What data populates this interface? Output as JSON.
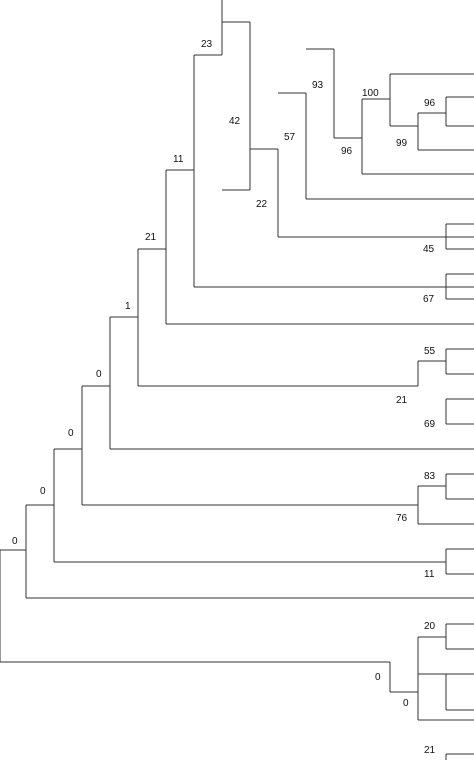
{
  "diagram": {
    "type": "phylogenetic-tree",
    "line_color": "#333333",
    "text_color": "#111111",
    "bootstrap_labels": [
      {
        "node": "n23",
        "value": "23"
      },
      {
        "node": "n42",
        "value": "42"
      },
      {
        "node": "n93",
        "value": "93"
      },
      {
        "node": "n100",
        "value": "100"
      },
      {
        "node": "n96a",
        "value": "96"
      },
      {
        "node": "n96b",
        "value": "96"
      },
      {
        "node": "n99",
        "value": "99"
      },
      {
        "node": "n57",
        "value": "57"
      },
      {
        "node": "n11a",
        "value": "11"
      },
      {
        "node": "n22",
        "value": "22"
      },
      {
        "node": "n21a",
        "value": "21"
      },
      {
        "node": "n45",
        "value": "45"
      },
      {
        "node": "n67",
        "value": "67"
      },
      {
        "node": "n1",
        "value": "1"
      },
      {
        "node": "n55",
        "value": "55"
      },
      {
        "node": "n0a",
        "value": "0"
      },
      {
        "node": "n21b",
        "value": "21"
      },
      {
        "node": "n69",
        "value": "69"
      },
      {
        "node": "n0b",
        "value": "0"
      },
      {
        "node": "n83",
        "value": "83"
      },
      {
        "node": "n0c",
        "value": "0"
      },
      {
        "node": "n76",
        "value": "76"
      },
      {
        "node": "n0d",
        "value": "0"
      },
      {
        "node": "n11b",
        "value": "11"
      },
      {
        "node": "n20",
        "value": "20"
      },
      {
        "node": "n0e",
        "value": "0"
      },
      {
        "node": "n0f",
        "value": "0"
      },
      {
        "node": "n21c",
        "value": "21"
      }
    ]
  }
}
